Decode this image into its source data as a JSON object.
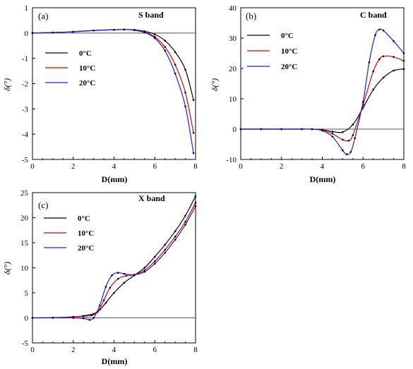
{
  "chart_data": [
    {
      "type": "line",
      "panel_label": "(a)",
      "title": "S band",
      "xlabel": "D(mm)",
      "ylabel": "δ(°)",
      "xlim": [
        0,
        8
      ],
      "ylim": [
        -5,
        1
      ],
      "xticks": [
        0,
        2,
        4,
        6,
        8
      ],
      "yticks": [
        1,
        0,
        -1,
        -2,
        -3,
        -4,
        -5
      ],
      "legend_position": "left",
      "reference_line_y": 0,
      "series": [
        {
          "name": "0°C",
          "color": "#000000",
          "x": [
            0,
            1,
            2,
            3,
            4,
            4.5,
            5,
            5.5,
            6,
            6.5,
            7,
            7.5,
            7.9
          ],
          "y": [
            0,
            0.02,
            0.05,
            0.1,
            0.13,
            0.14,
            0.13,
            0.07,
            -0.05,
            -0.3,
            -0.75,
            -1.45,
            -2.65
          ]
        },
        {
          "name": "10°C",
          "color": "#e00000",
          "x": [
            0,
            1,
            2,
            3,
            4,
            4.5,
            5,
            5.5,
            6,
            6.5,
            7,
            7.5,
            7.9
          ],
          "y": [
            0,
            0.02,
            0.05,
            0.1,
            0.13,
            0.14,
            0.12,
            0.04,
            -0.15,
            -0.55,
            -1.25,
            -2.35,
            -3.95
          ]
        },
        {
          "name": "20°C",
          "color": "#1a1aff",
          "x": [
            0,
            1,
            2,
            3,
            4,
            4.5,
            5,
            5.5,
            6,
            6.5,
            7,
            7.5,
            7.9
          ],
          "y": [
            0,
            0.02,
            0.05,
            0.1,
            0.13,
            0.14,
            0.11,
            0.02,
            -0.2,
            -0.7,
            -1.6,
            -2.9,
            -4.75
          ]
        }
      ]
    },
    {
      "type": "line",
      "panel_label": "(b)",
      "title": "C band",
      "xlabel": "D(mm)",
      "ylabel": "δ(°)",
      "xlim": [
        0,
        8
      ],
      "ylim": [
        -10,
        40
      ],
      "xticks": [
        0,
        2,
        4,
        6,
        8
      ],
      "yticks": [
        40,
        30,
        20,
        10,
        0,
        -10
      ],
      "legend_position": "top",
      "reference_line_y": 0,
      "series": [
        {
          "name": "0°C",
          "color": "#000000",
          "x": [
            0,
            1,
            2,
            3,
            3.5,
            4,
            4.5,
            5,
            5.5,
            6,
            6.5,
            7,
            7.5,
            8
          ],
          "y": [
            0,
            0,
            0,
            0,
            0,
            -0.2,
            -0.8,
            -1.0,
            1.5,
            7.0,
            13.0,
            17.0,
            19.3,
            19.8
          ]
        },
        {
          "name": "10°C",
          "color": "#e00000",
          "x": [
            0,
            1,
            2,
            3,
            3.5,
            4,
            4.5,
            5,
            5.3,
            5.5,
            6,
            6.5,
            6.8,
            7,
            7.5,
            8
          ],
          "y": [
            0,
            0,
            0,
            0,
            0,
            -0.3,
            -1.5,
            -3.5,
            -3.8,
            -2.0,
            8.0,
            19.0,
            23.0,
            24.0,
            23.8,
            22.5
          ]
        },
        {
          "name": "20°C",
          "color": "#1a1aff",
          "x": [
            0,
            1,
            2,
            3,
            3.5,
            4,
            4.5,
            5,
            5.2,
            5.4,
            5.6,
            6,
            6.3,
            6.6,
            6.8,
            7,
            7.5,
            8
          ],
          "y": [
            0,
            0,
            0,
            0,
            0,
            -0.5,
            -2.5,
            -7.0,
            -8.3,
            -7.5,
            -3.0,
            9.0,
            22.0,
            31.0,
            32.8,
            32.5,
            29.0,
            25.0
          ]
        }
      ]
    },
    {
      "type": "line",
      "panel_label": "(c)",
      "title": "X band",
      "xlabel": "D(mm)",
      "ylabel": "δ(°)",
      "xlim": [
        0,
        8
      ],
      "ylim": [
        -5,
        25
      ],
      "xticks": [
        0,
        2,
        4,
        6,
        8
      ],
      "yticks": [
        25,
        20,
        15,
        10,
        5,
        0,
        -5
      ],
      "legend_position": "top-left",
      "reference_line_y": 0,
      "series": [
        {
          "name": "0°C",
          "color": "#000000",
          "x": [
            0,
            1,
            2,
            2.5,
            3,
            3.3,
            3.6,
            4,
            4.5,
            5,
            5.5,
            6,
            6.5,
            7,
            7.5,
            8
          ],
          "y": [
            0,
            0.05,
            0.2,
            0.4,
            0.8,
            1.6,
            3.0,
            5.0,
            7.0,
            8.5,
            10.0,
            12.2,
            14.6,
            17.3,
            20.4,
            24.3
          ]
        },
        {
          "name": "10°C",
          "color": "#e00000",
          "x": [
            0,
            1,
            2,
            2.5,
            2.9,
            3.2,
            3.5,
            3.8,
            4.2,
            4.6,
            5,
            5.5,
            6,
            6.5,
            7,
            7.5,
            8
          ],
          "y": [
            0,
            0.03,
            0.15,
            0.3,
            0.5,
            1.2,
            3.5,
            6.0,
            7.8,
            8.4,
            8.6,
            9.5,
            11.3,
            13.6,
            16.2,
            19.2,
            23.0
          ]
        },
        {
          "name": "20°C",
          "color": "#1a1aff",
          "x": [
            0,
            1,
            2,
            2.5,
            2.8,
            3.0,
            3.3,
            3.6,
            3.9,
            4.2,
            4.5,
            5,
            5.5,
            6,
            6.5,
            7,
            7.5,
            8
          ],
          "y": [
            0,
            0,
            0,
            -0.1,
            -0.4,
            0.0,
            2.5,
            6.2,
            8.5,
            9.0,
            8.8,
            8.6,
            9.2,
            10.8,
            13.0,
            15.6,
            18.6,
            22.3
          ]
        }
      ]
    }
  ]
}
